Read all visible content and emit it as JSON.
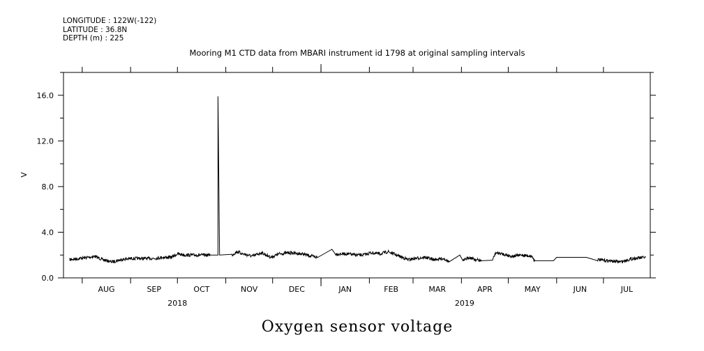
{
  "header": {
    "lines": [
      "LONGITUDE : 122W(-122)",
      "LATITUDE : 36.8N",
      "DEPTH (m) : 225"
    ]
  },
  "chart_data": {
    "type": "line",
    "title": "Mooring M1 CTD data from MBARI instrument id 1798 at original sampling intervals",
    "caption": "Oxygen sensor voltage",
    "ylabel": "V",
    "ylim": [
      0,
      18
    ],
    "yticks": [
      0,
      4,
      8,
      12,
      16
    ],
    "ytick_labels": [
      "0.0",
      "4.0",
      "8.0",
      "12.0",
      "16.0"
    ],
    "xlim": [
      "2018-07-20",
      "2019-07-31"
    ],
    "month_labels": [
      "AUG",
      "SEP",
      "OCT",
      "NOV",
      "DEC",
      "JAN",
      "FEB",
      "MAR",
      "APR",
      "MAY",
      "JUN",
      "JUL"
    ],
    "year_labels": [
      {
        "label": "2018",
        "at": "2018-10-01"
      },
      {
        "label": "2019",
        "at": "2019-04-03"
      }
    ],
    "series": [
      {
        "x": [
          "2018-07-24",
          "2018-07-30",
          "2018-08-05",
          "2018-08-09",
          "2018-08-14",
          "2018-08-20",
          "2018-08-26",
          "2018-09-01",
          "2018-09-08",
          "2018-09-15",
          "2018-09-22",
          "2018-09-27",
          "2018-10-01",
          "2018-10-06",
          "2018-10-14",
          "2018-10-22",
          "2018-10-27",
          "2018-10-27",
          "2018-10-28",
          "2018-11-05",
          "2018-11-08",
          "2018-11-12",
          "2018-11-18",
          "2018-11-24",
          "2018-11-30",
          "2018-12-05",
          "2018-12-12",
          "2018-12-20",
          "2018-12-26",
          "2018-12-30",
          "2019-01-08",
          "2019-01-10",
          "2019-01-17",
          "2019-01-24",
          "2019-01-28",
          "2019-02-02",
          "2019-02-08",
          "2019-02-13",
          "2019-02-20",
          "2019-02-26",
          "2019-03-02",
          "2019-03-09",
          "2019-03-14",
          "2019-03-21",
          "2019-03-24",
          "2019-03-31",
          "2019-04-02",
          "2019-04-06",
          "2019-04-10",
          "2019-04-14",
          "2019-04-21",
          "2019-04-23",
          "2019-04-27",
          "2019-05-03",
          "2019-05-10",
          "2019-05-16",
          "2019-05-18",
          "2019-05-30",
          "2019-06-01",
          "2019-06-10",
          "2019-06-20",
          "2019-06-27",
          "2019-07-04",
          "2019-07-12",
          "2019-07-20",
          "2019-07-28"
        ],
        "values": [
          1.6,
          1.7,
          1.8,
          1.9,
          1.6,
          1.4,
          1.6,
          1.7,
          1.7,
          1.7,
          1.8,
          1.8,
          2.1,
          2.0,
          2.0,
          2.0,
          2.0,
          16.0,
          2.0,
          2.0,
          2.3,
          2.1,
          1.9,
          2.2,
          1.8,
          2.1,
          2.2,
          2.1,
          1.9,
          1.8,
          2.5,
          2.1,
          2.1,
          2.0,
          2.0,
          2.2,
          2.1,
          2.3,
          1.9,
          1.6,
          1.7,
          1.8,
          1.6,
          1.7,
          1.4,
          2.0,
          1.5,
          1.8,
          1.6,
          1.5,
          1.6,
          2.2,
          2.1,
          1.9,
          2.0,
          1.9,
          1.5,
          1.5,
          1.8,
          1.8,
          1.8,
          1.6,
          1.5,
          1.4,
          1.7,
          1.8
        ]
      }
    ],
    "grid": false,
    "legend": "none"
  }
}
